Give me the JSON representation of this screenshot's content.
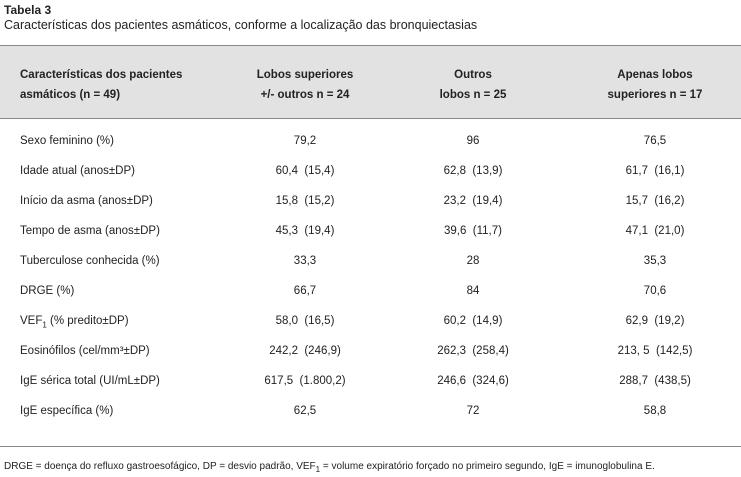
{
  "header": {
    "title": "Tabela 3",
    "subtitle": "Características dos pacientes asmáticos, conforme a localização das bronquiectasias"
  },
  "table": {
    "columns": [
      [
        "Características dos pacientes",
        "asmáticos (n = 49)"
      ],
      [
        "Lobos superiores",
        "+/- outros n = 24"
      ],
      [
        "Outros",
        "lobos n = 25"
      ],
      [
        "Apenas lobos",
        "superiores n = 17"
      ]
    ],
    "rows": [
      [
        [
          "Sexo feminino (%)"
        ],
        "79,2",
        "96",
        "76,5"
      ],
      [
        [
          "Idade atual (anos±DP)"
        ],
        "60,4  (15,4)",
        "62,8  (13,9)",
        "61,7  (16,1)"
      ],
      [
        [
          "Início da asma (anos±DP)"
        ],
        "15,8  (15,2)",
        "23,2  (19,4)",
        "15,7  (16,2)"
      ],
      [
        [
          "Tempo de asma (anos±DP)"
        ],
        "45,3  (19,4)",
        "39,6  (11,7)",
        "47,1  (21,0)"
      ],
      [
        [
          "Tuberculose conhecida (%)"
        ],
        "33,3",
        "28",
        "35,3"
      ],
      [
        [
          "DRGE (%)"
        ],
        "66,7",
        "84",
        "70,6"
      ],
      [
        [
          "VEF",
          "1",
          " (% predito±DP)"
        ],
        "58,0  (16,5)",
        "60,2  (14,9)",
        "62,9  (19,2)"
      ],
      [
        [
          "Eosinófilos (cel/mm³±DP)"
        ],
        "242,2  (246,9)",
        "262,3  (258,4)",
        "213, 5  (142,5)"
      ],
      [
        [
          "IgE sérica total (UI/mL±DP)"
        ],
        "617,5  (1.800,2)",
        "246,6  (324,6)",
        "288,7  (438,5)"
      ],
      [
        [
          "IgE específica (%)"
        ],
        "62,5",
        "72",
        "58,8"
      ]
    ]
  },
  "footnote": [
    "DRGE = doença do refluxo gastroesofágico, DP = desvio padrão, VEF",
    "1",
    " = volume expiratório forçado no primeiro segundo, IgE = imunoglobulina E."
  ]
}
